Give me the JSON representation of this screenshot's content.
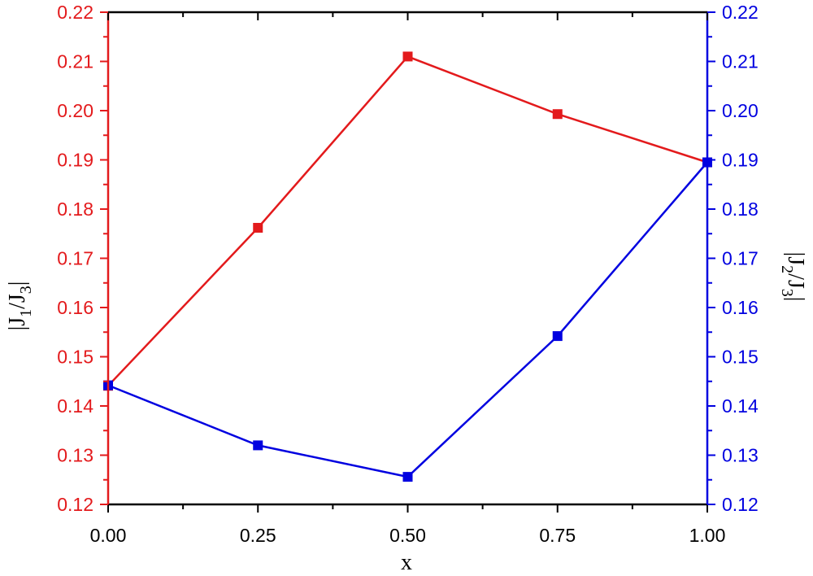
{
  "chart_data": {
    "type": "line",
    "x": [
      0.0,
      0.25,
      0.5,
      0.75,
      1.0
    ],
    "x_tick_labels": [
      "0.00",
      "0.25",
      "0.50",
      "0.75",
      "1.00"
    ],
    "xlabel": "x",
    "xlim": [
      0.0,
      1.0
    ],
    "y_left": {
      "label_main": "|J",
      "label_sub1": "1",
      "label_mid": "/J",
      "label_sub2": "3",
      "label_end": "|",
      "ylim": [
        0.12,
        0.22
      ],
      "tick_labels": [
        "0.12",
        "0.13",
        "0.14",
        "0.15",
        "0.16",
        "0.17",
        "0.18",
        "0.19",
        "0.20",
        "0.21",
        "0.22"
      ],
      "color": "#e31a1c"
    },
    "y_right": {
      "label_main": "|J",
      "label_sub1": "2",
      "label_mid": "/J",
      "label_sub2": "3",
      "label_end": "|",
      "ylim": [
        0.12,
        0.22
      ],
      "tick_labels": [
        "0.12",
        "0.13",
        "0.14",
        "0.15",
        "0.16",
        "0.17",
        "0.18",
        "0.19",
        "0.20",
        "0.21",
        "0.22"
      ],
      "color": "#0000e0"
    },
    "series": [
      {
        "axis": "left",
        "color": "#e31a1c",
        "marker": "square",
        "values": [
          0.1441,
          0.1762,
          0.211,
          0.1993,
          0.1895
        ]
      },
      {
        "axis": "right",
        "color": "#0000e0",
        "marker": "square",
        "values": [
          0.1442,
          0.132,
          0.1256,
          0.1542,
          0.1895
        ]
      }
    ],
    "grid": false
  }
}
